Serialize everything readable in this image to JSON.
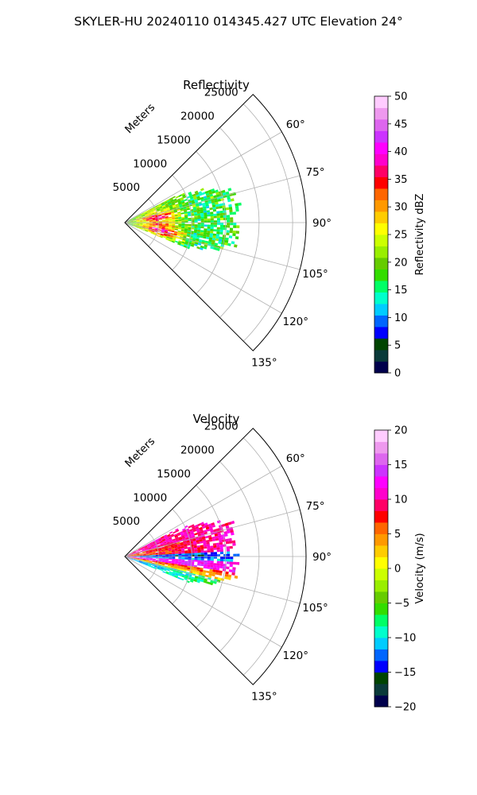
{
  "title": "SKYLER-HU  20240110  014345.427 UTC Elevation 24°",
  "chart_data": [
    {
      "type": "heatmap",
      "subtype": "polar-sector-ppi",
      "title": "Reflectivity",
      "range_label": "Meters",
      "range_ticks": [
        5000,
        10000,
        15000,
        20000,
        25000
      ],
      "range_tick_labels": [
        "5000",
        "10000",
        "15000",
        "20000",
        "25000"
      ],
      "range_max": 27000,
      "azimuth_range_deg": [
        45,
        135
      ],
      "azimuth_ticks": [
        60,
        75,
        90,
        105,
        120,
        135
      ],
      "azimuth_tick_labels": [
        "60°",
        "75°",
        "90°",
        "105°",
        "120°",
        "135°"
      ],
      "grid": true,
      "data_extent": {
        "max_range_m": 17000,
        "azimuth_deg": [
          62,
          112
        ]
      },
      "colorbar": {
        "label": "Reflectivity dBZ",
        "vmin": 0,
        "vmax": 50,
        "ticks": [
          0,
          5,
          10,
          15,
          20,
          25,
          30,
          35,
          40,
          45,
          50
        ],
        "tick_labels": [
          "0",
          "5",
          "10",
          "15",
          "20",
          "25",
          "30",
          "35",
          "40",
          "45",
          "50"
        ],
        "position": "right"
      },
      "colormap": [
        "#00004c",
        "#0a3a3a",
        "#004400",
        "#0000ff",
        "#0066ff",
        "#00ccff",
        "#00ffcc",
        "#00ff66",
        "#33dd00",
        "#66cc00",
        "#99ee00",
        "#ccff00",
        "#ffff00",
        "#ffcc00",
        "#ff9900",
        "#ff6600",
        "#ff0000",
        "#ff0066",
        "#ff00cc",
        "#ff00ff",
        "#cc33ff",
        "#dd66ee",
        "#ee99ee",
        "#ffccff"
      ],
      "pattern_description": "Mostly 15-25 dBZ returns with 25-45 dBZ cores near the radar along 75-105°"
    },
    {
      "type": "heatmap",
      "subtype": "polar-sector-ppi",
      "title": "Velocity",
      "range_label": "Meters",
      "range_ticks": [
        5000,
        10000,
        15000,
        20000,
        25000
      ],
      "range_tick_labels": [
        "5000",
        "10000",
        "15000",
        "20000",
        "25000"
      ],
      "range_max": 27000,
      "azimuth_range_deg": [
        45,
        135
      ],
      "azimuth_ticks": [
        60,
        75,
        90,
        105,
        120,
        135
      ],
      "azimuth_tick_labels": [
        "60°",
        "75°",
        "90°",
        "105°",
        "120°",
        "135°"
      ],
      "grid": true,
      "data_extent": {
        "max_range_m": 17000,
        "azimuth_deg": [
          62,
          112
        ]
      },
      "colorbar": {
        "label": "Velocity (m/s)",
        "vmin": -20,
        "vmax": 20,
        "ticks": [
          -20,
          -15,
          -10,
          -5,
          0,
          5,
          10,
          15,
          20
        ],
        "tick_labels": [
          "−20",
          "−15",
          "−10",
          "−5",
          "0",
          "5",
          "10",
          "15",
          "20"
        ],
        "position": "right"
      },
      "colormap": [
        "#00004c",
        "#0a3a3a",
        "#004400",
        "#0000ff",
        "#0066ff",
        "#00ccff",
        "#00ffcc",
        "#00ff66",
        "#33dd00",
        "#66cc00",
        "#99ee00",
        "#ccff00",
        "#ffff00",
        "#ffcc00",
        "#ff9900",
        "#ff6600",
        "#ff0000",
        "#ff0066",
        "#ff00cc",
        "#ff00ff",
        "#cc33ff",
        "#dd66ee",
        "#ee99ee",
        "#ffccff"
      ],
      "pattern_description": "Positive (+5 to +15 m/s) north of ~93°, negative (-5 to -15 m/s) band near 88-92° and south of ~100°"
    }
  ]
}
